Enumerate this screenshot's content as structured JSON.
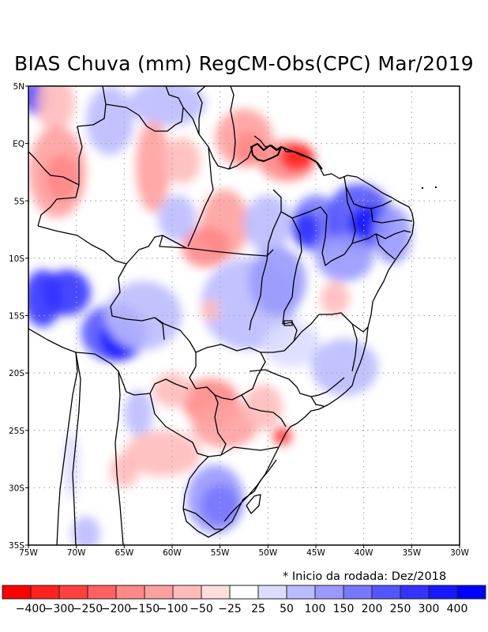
{
  "title": "BIAS Chuva (mm) RegCM-Obs(CPC) Mar/2019",
  "footnote": "* Inicio da rodada: Dez/2018",
  "map": {
    "variable": "Precipitation bias (mm)",
    "model": "RegCM",
    "observation": "CPC",
    "month": "Mar/2019",
    "lon_range": [
      -75,
      -30
    ],
    "lat_range": [
      -35,
      5
    ],
    "x_ticks": [
      "75W",
      "70W",
      "65W",
      "60W",
      "55W",
      "50W",
      "45W",
      "40W",
      "35W",
      "30W"
    ],
    "y_ticks": [
      "5N",
      "EQ",
      "5S",
      "10S",
      "15S",
      "20S",
      "25S",
      "30S",
      "35S"
    ],
    "grid": "dotted"
  },
  "colorbar": {
    "labels": [
      "-400",
      "-300",
      "-250",
      "-200",
      "-150",
      "-100",
      "-50",
      "-25",
      "25",
      "50",
      "100",
      "150",
      "200",
      "250",
      "300",
      "400"
    ],
    "colors": [
      "#ff0000",
      "#ff2020",
      "#ff4040",
      "#ff6060",
      "#ff8888",
      "#ffa0a0",
      "#ffbbbb",
      "#ffdddd",
      "#ffffff",
      "#dcdcff",
      "#bbbbff",
      "#9999ff",
      "#7777ff",
      "#5555ff",
      "#3333ff",
      "#1818ff",
      "#0000ff"
    ]
  },
  "fields": [
    {
      "lon": -74.2,
      "lat": 4.0,
      "rx": 1.2,
      "ry": 1.5,
      "level": 300
    },
    {
      "lon": -72.2,
      "lat": 3.5,
      "rx": 2.0,
      "ry": 2.5,
      "level": -50
    },
    {
      "lon": -72.0,
      "lat": -2.5,
      "rx": 3.0,
      "ry": 4.0,
      "level": -100
    },
    {
      "lon": -71.5,
      "lat": -3.0,
      "rx": 1.8,
      "ry": 2.0,
      "level": -150
    },
    {
      "lon": -66.5,
      "lat": 2.0,
      "rx": 2.5,
      "ry": 3.0,
      "level": 50
    },
    {
      "lon": -60.5,
      "lat": 3.5,
      "rx": 4.0,
      "ry": 2.0,
      "level": 50
    },
    {
      "lon": -62.0,
      "lat": -2.0,
      "rx": 1.8,
      "ry": 4.0,
      "level": -100
    },
    {
      "lon": -59.0,
      "lat": -1.5,
      "rx": 2.0,
      "ry": 2.0,
      "level": -50
    },
    {
      "lon": -52.5,
      "lat": 0.5,
      "rx": 3.0,
      "ry": 2.5,
      "level": -100
    },
    {
      "lon": -52.0,
      "lat": -0.5,
      "rx": 1.5,
      "ry": 1.5,
      "level": -150
    },
    {
      "lon": -48.0,
      "lat": -1.5,
      "rx": 3.0,
      "ry": 1.8,
      "level": -150
    },
    {
      "lon": -47.0,
      "lat": -1.2,
      "rx": 1.8,
      "ry": 1.2,
      "level": -300
    },
    {
      "lon": -54.5,
      "lat": -7.0,
      "rx": 2.5,
      "ry": 3.0,
      "level": -100
    },
    {
      "lon": -56.5,
      "lat": -9.0,
      "rx": 2.5,
      "ry": 1.8,
      "level": -150
    },
    {
      "lon": -59.5,
      "lat": -6.5,
      "rx": 2.0,
      "ry": 2.0,
      "level": 50
    },
    {
      "lon": -50.0,
      "lat": -7.0,
      "rx": 2.5,
      "ry": 2.5,
      "level": 50
    },
    {
      "lon": -45.0,
      "lat": -7.0,
      "rx": 2.5,
      "ry": 2.5,
      "level": 150
    },
    {
      "lon": -46.0,
      "lat": -7.5,
      "rx": 1.5,
      "ry": 1.5,
      "level": 250
    },
    {
      "lon": -40.5,
      "lat": -6.5,
      "rx": 3.5,
      "ry": 3.0,
      "level": 200
    },
    {
      "lon": -39.5,
      "lat": -7.0,
      "rx": 2.0,
      "ry": 1.5,
      "level": 300
    },
    {
      "lon": -37.0,
      "lat": -8.0,
      "rx": 2.0,
      "ry": 2.5,
      "level": 100
    },
    {
      "lon": -42.0,
      "lat": -10.0,
      "rx": 3.0,
      "ry": 2.0,
      "level": 100
    },
    {
      "lon": -73.5,
      "lat": -13.5,
      "rx": 2.0,
      "ry": 2.5,
      "level": 250
    },
    {
      "lon": -71.0,
      "lat": -13.0,
      "rx": 2.5,
      "ry": 2.0,
      "level": 250
    },
    {
      "lon": -66.0,
      "lat": -16.5,
      "rx": 3.5,
      "ry": 2.5,
      "level": 200
    },
    {
      "lon": -65.5,
      "lat": -17.0,
      "rx": 2.0,
      "ry": 1.8,
      "level": 300
    },
    {
      "lon": -63.0,
      "lat": -15.0,
      "rx": 4.0,
      "ry": 3.0,
      "level": 50
    },
    {
      "lon": -52.0,
      "lat": -14.0,
      "rx": 5.0,
      "ry": 4.0,
      "level": 50
    },
    {
      "lon": -49.0,
      "lat": -12.0,
      "rx": 3.0,
      "ry": 3.0,
      "level": 100
    },
    {
      "lon": -56.0,
      "lat": -14.5,
      "rx": 1.0,
      "ry": 1.0,
      "level": -50
    },
    {
      "lon": -47.5,
      "lat": -17.5,
      "rx": 3.0,
      "ry": 2.0,
      "level": 25
    },
    {
      "lon": -42.0,
      "lat": -19.5,
      "rx": 3.5,
      "ry": 2.5,
      "level": 50
    },
    {
      "lon": -43.0,
      "lat": -13.5,
      "rx": 1.5,
      "ry": 1.5,
      "level": -50
    },
    {
      "lon": -56.0,
      "lat": -22.5,
      "rx": 3.0,
      "ry": 2.0,
      "level": -150
    },
    {
      "lon": -54.5,
      "lat": -24.5,
      "rx": 3.5,
      "ry": 2.0,
      "level": -100
    },
    {
      "lon": -60.0,
      "lat": -21.5,
      "rx": 2.0,
      "ry": 1.5,
      "level": -50
    },
    {
      "lon": -50.5,
      "lat": -23.0,
      "rx": 2.0,
      "ry": 2.0,
      "level": -50
    },
    {
      "lon": -48.5,
      "lat": -25.5,
      "rx": 1.0,
      "ry": 0.8,
      "level": -250
    },
    {
      "lon": -63.5,
      "lat": -23.5,
      "rx": 1.5,
      "ry": 2.0,
      "level": 50
    },
    {
      "lon": -61.0,
      "lat": -27.0,
      "rx": 4.0,
      "ry": 2.0,
      "level": -50
    },
    {
      "lon": -65.0,
      "lat": -28.5,
      "rx": 1.5,
      "ry": 1.5,
      "level": -50
    },
    {
      "lon": -55.5,
      "lat": -31.0,
      "rx": 3.0,
      "ry": 3.0,
      "level": 100
    },
    {
      "lon": -55.0,
      "lat": -31.5,
      "rx": 2.0,
      "ry": 1.8,
      "level": 150
    },
    {
      "lon": -69.0,
      "lat": -34.0,
      "rx": 1.5,
      "ry": 1.5,
      "level": 50
    },
    {
      "lon": -70.5,
      "lat": -28.0,
      "rx": 0.8,
      "ry": 3.0,
      "level": 25
    }
  ]
}
